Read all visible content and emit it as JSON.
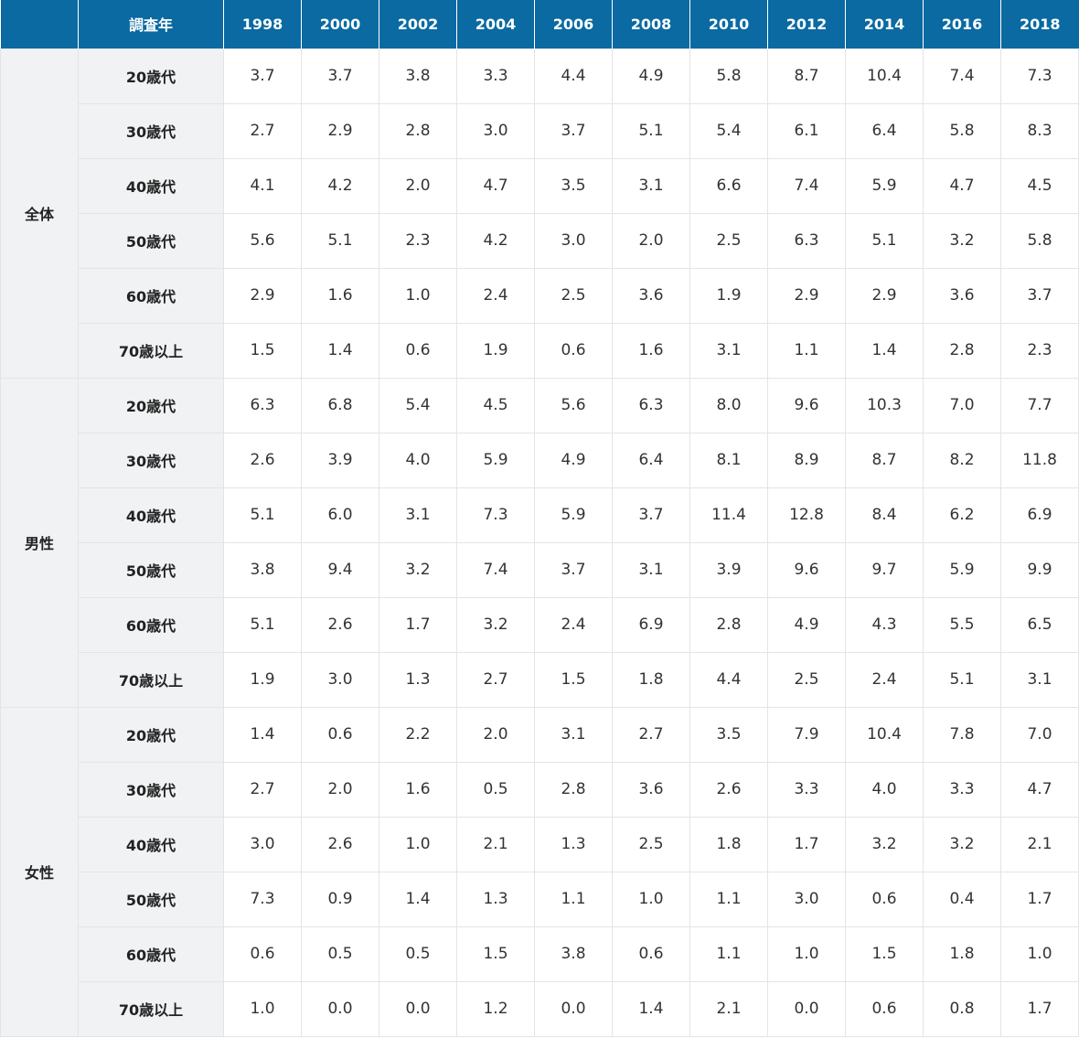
{
  "table": {
    "header_label": "調査年",
    "years": [
      "1998",
      "2000",
      "2002",
      "2004",
      "2006",
      "2008",
      "2010",
      "2012",
      "2014",
      "2016",
      "2018"
    ],
    "groups": [
      {
        "name": "全体",
        "rows": [
          {
            "age": "20歳代",
            "values": [
              "3.7",
              "3.7",
              "3.8",
              "3.3",
              "4.4",
              "4.9",
              "5.8",
              "8.7",
              "10.4",
              "7.4",
              "7.3"
            ]
          },
          {
            "age": "30歳代",
            "values": [
              "2.7",
              "2.9",
              "2.8",
              "3.0",
              "3.7",
              "5.1",
              "5.4",
              "6.1",
              "6.4",
              "5.8",
              "8.3"
            ]
          },
          {
            "age": "40歳代",
            "values": [
              "4.1",
              "4.2",
              "2.0",
              "4.7",
              "3.5",
              "3.1",
              "6.6",
              "7.4",
              "5.9",
              "4.7",
              "4.5"
            ]
          },
          {
            "age": "50歳代",
            "values": [
              "5.6",
              "5.1",
              "2.3",
              "4.2",
              "3.0",
              "2.0",
              "2.5",
              "6.3",
              "5.1",
              "3.2",
              "5.8"
            ]
          },
          {
            "age": "60歳代",
            "values": [
              "2.9",
              "1.6",
              "1.0",
              "2.4",
              "2.5",
              "3.6",
              "1.9",
              "2.9",
              "2.9",
              "3.6",
              "3.7"
            ]
          },
          {
            "age": "70歳以上",
            "values": [
              "1.5",
              "1.4",
              "0.6",
              "1.9",
              "0.6",
              "1.6",
              "3.1",
              "1.1",
              "1.4",
              "2.8",
              "2.3"
            ]
          }
        ]
      },
      {
        "name": "男性",
        "rows": [
          {
            "age": "20歳代",
            "values": [
              "6.3",
              "6.8",
              "5.4",
              "4.5",
              "5.6",
              "6.3",
              "8.0",
              "9.6",
              "10.3",
              "7.0",
              "7.7"
            ]
          },
          {
            "age": "30歳代",
            "values": [
              "2.6",
              "3.9",
              "4.0",
              "5.9",
              "4.9",
              "6.4",
              "8.1",
              "8.9",
              "8.7",
              "8.2",
              "11.8"
            ]
          },
          {
            "age": "40歳代",
            "values": [
              "5.1",
              "6.0",
              "3.1",
              "7.3",
              "5.9",
              "3.7",
              "11.4",
              "12.8",
              "8.4",
              "6.2",
              "6.9"
            ]
          },
          {
            "age": "50歳代",
            "values": [
              "3.8",
              "9.4",
              "3.2",
              "7.4",
              "3.7",
              "3.1",
              "3.9",
              "9.6",
              "9.7",
              "5.9",
              "9.9"
            ]
          },
          {
            "age": "60歳代",
            "values": [
              "5.1",
              "2.6",
              "1.7",
              "3.2",
              "2.4",
              "6.9",
              "2.8",
              "4.9",
              "4.3",
              "5.5",
              "6.5"
            ]
          },
          {
            "age": "70歳以上",
            "values": [
              "1.9",
              "3.0",
              "1.3",
              "2.7",
              "1.5",
              "1.8",
              "4.4",
              "2.5",
              "2.4",
              "5.1",
              "3.1"
            ]
          }
        ]
      },
      {
        "name": "女性",
        "rows": [
          {
            "age": "20歳代",
            "values": [
              "1.4",
              "0.6",
              "2.2",
              "2.0",
              "3.1",
              "2.7",
              "3.5",
              "7.9",
              "10.4",
              "7.8",
              "7.0"
            ]
          },
          {
            "age": "30歳代",
            "values": [
              "2.7",
              "2.0",
              "1.6",
              "0.5",
              "2.8",
              "3.6",
              "2.6",
              "3.3",
              "4.0",
              "3.3",
              "4.7"
            ]
          },
          {
            "age": "40歳代",
            "values": [
              "3.0",
              "2.6",
              "1.0",
              "2.1",
              "1.3",
              "2.5",
              "1.8",
              "1.7",
              "3.2",
              "3.2",
              "2.1"
            ]
          },
          {
            "age": "50歳代",
            "values": [
              "7.3",
              "0.9",
              "1.4",
              "1.3",
              "1.1",
              "1.0",
              "1.1",
              "3.0",
              "0.6",
              "0.4",
              "1.7"
            ]
          },
          {
            "age": "60歳代",
            "values": [
              "0.6",
              "0.5",
              "0.5",
              "1.5",
              "3.8",
              "0.6",
              "1.1",
              "1.0",
              "1.5",
              "1.8",
              "1.0"
            ]
          },
          {
            "age": "70歳以上",
            "values": [
              "1.0",
              "0.0",
              "0.0",
              "1.2",
              "0.0",
              "1.4",
              "2.1",
              "0.0",
              "0.6",
              "0.8",
              "1.7"
            ]
          }
        ]
      }
    ]
  },
  "colors": {
    "header_bg": "#0a6aa1",
    "header_text": "#ffffff",
    "label_bg": "#f1f2f4",
    "border": "#e2e4e8"
  }
}
